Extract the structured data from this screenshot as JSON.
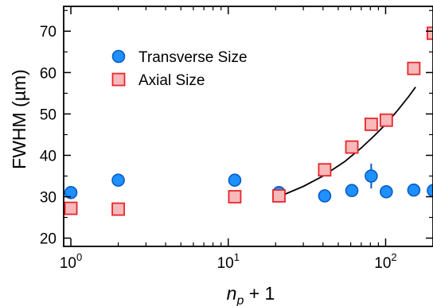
{
  "chart_data": {
    "type": "scatter",
    "xlabel": "n_p + 1",
    "xlabel_var": "n",
    "xlabel_sub": "p",
    "xlabel_rest": " + 1",
    "ylabel": "FWHM (µm)",
    "xscale": "log",
    "xlim": [
      0.9,
      200
    ],
    "ylim": [
      18,
      76
    ],
    "xticks": [
      {
        "value": 1,
        "base": "10",
        "exp": "0"
      },
      {
        "value": 10,
        "base": "10",
        "exp": "1"
      },
      {
        "value": 100,
        "base": "10",
        "exp": "2"
      }
    ],
    "yticks": [
      20,
      30,
      40,
      50,
      60,
      70
    ],
    "grid": false,
    "legend_position": "top-left",
    "series": [
      {
        "name": "Transverse Size",
        "marker": "circle",
        "color": "#1e90ff",
        "edge_color": "#0a5cc2",
        "points": [
          {
            "x": 1,
            "y": 31.0
          },
          {
            "x": 2,
            "y": 34.0
          },
          {
            "x": 11,
            "y": 34.0,
            "yerr": 1.5
          },
          {
            "x": 21,
            "y": 31.0
          },
          {
            "x": 41,
            "y": 30.2
          },
          {
            "x": 61,
            "y": 31.5
          },
          {
            "x": 81,
            "y": 35.0,
            "yerr": 3.0
          },
          {
            "x": 101,
            "y": 31.2
          },
          {
            "x": 151,
            "y": 31.6
          },
          {
            "x": 201,
            "y": 31.5
          }
        ]
      },
      {
        "name": "Axial Size",
        "marker": "square",
        "color": "#f7b9b9",
        "edge_color": "#e8262b",
        "points": [
          {
            "x": 1,
            "y": 27.2
          },
          {
            "x": 2,
            "y": 27.0
          },
          {
            "x": 11,
            "y": 30.0
          },
          {
            "x": 21,
            "y": 30.2
          },
          {
            "x": 41,
            "y": 36.5
          },
          {
            "x": 61,
            "y": 42.0
          },
          {
            "x": 81,
            "y": 47.5
          },
          {
            "x": 101,
            "y": 48.5
          },
          {
            "x": 151,
            "y": 61.0
          },
          {
            "x": 201,
            "y": 69.5
          }
        ]
      }
    ],
    "fit_line": {
      "color": "#000000",
      "points": [
        {
          "x": 21,
          "y": 30.0
        },
        {
          "x": 30,
          "y": 32.5
        },
        {
          "x": 40,
          "y": 35.0
        },
        {
          "x": 55,
          "y": 38.5
        },
        {
          "x": 70,
          "y": 41.8
        },
        {
          "x": 85,
          "y": 44.8
        },
        {
          "x": 100,
          "y": 47.5
        },
        {
          "x": 120,
          "y": 51.0
        },
        {
          "x": 140,
          "y": 54.2
        },
        {
          "x": 155,
          "y": 56.5
        }
      ]
    }
  }
}
